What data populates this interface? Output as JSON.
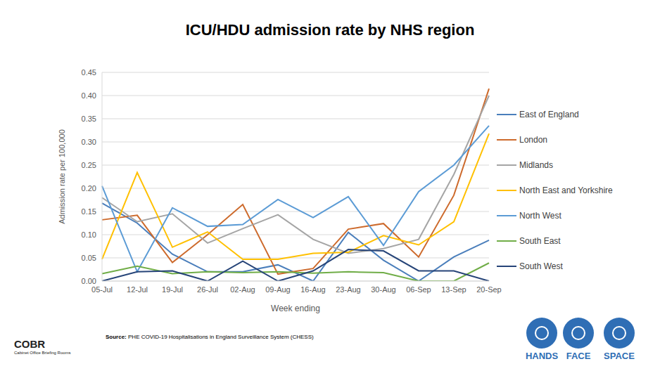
{
  "chart_data": {
    "type": "line",
    "title": "ICU/HDU admission rate by NHS region",
    "x_label": "Week ending",
    "y_label": "Admission rate per 100,000",
    "categories": [
      "05-Jul",
      "12-Jul",
      "19-Jul",
      "26-Jul",
      "02-Aug",
      "09-Aug",
      "16-Aug",
      "23-Aug",
      "30-Aug",
      "06-Sep",
      "13-Sep",
      "20-Sep"
    ],
    "series": [
      {
        "name": "East of England",
        "color": "#4a7ebb",
        "values": [
          0.168,
          0.125,
          0.058,
          0.02,
          0.02,
          0.035,
          0.0,
          0.105,
          0.045,
          0.0,
          0.052,
          0.088
        ]
      },
      {
        "name": "London",
        "color": "#cd6a2c",
        "values": [
          0.132,
          0.142,
          0.04,
          0.1,
          0.165,
          0.015,
          0.027,
          0.112,
          0.124,
          0.052,
          0.185,
          0.415
        ]
      },
      {
        "name": "Midlands",
        "color": "#a5a5a5",
        "values": [
          0.18,
          0.128,
          0.145,
          0.082,
          0.113,
          0.143,
          0.09,
          0.06,
          0.07,
          0.09,
          0.23,
          0.4
        ]
      },
      {
        "name": "North East and Yorkshire",
        "color": "#ffc000",
        "values": [
          0.047,
          0.234,
          0.073,
          0.106,
          0.047,
          0.047,
          0.06,
          0.062,
          0.098,
          0.078,
          0.128,
          0.318
        ]
      },
      {
        "name": "North West",
        "color": "#5b9bd5",
        "values": [
          0.205,
          0.02,
          0.158,
          0.118,
          0.122,
          0.176,
          0.137,
          0.182,
          0.077,
          0.193,
          0.25,
          0.335
        ]
      },
      {
        "name": "South East",
        "color": "#70ad47",
        "values": [
          0.016,
          0.032,
          0.016,
          0.02,
          0.018,
          0.02,
          0.017,
          0.02,
          0.018,
          0.0,
          0.0,
          0.039
        ]
      },
      {
        "name": "South West",
        "color": "#264478",
        "values": [
          0.0,
          0.02,
          0.022,
          0.0,
          0.043,
          0.0,
          0.022,
          0.068,
          0.065,
          0.022,
          0.022,
          0.0
        ]
      }
    ],
    "ylim": [
      0,
      0.45
    ],
    "yticks": [
      {
        "value": 0,
        "label": "0.00"
      },
      {
        "value": 0.05,
        "label": "0.05"
      },
      {
        "value": 0.1,
        "label": "0.10"
      },
      {
        "value": 0.15,
        "label": "0.15"
      },
      {
        "value": 0.2,
        "label": "0.20"
      },
      {
        "value": 0.25,
        "label": "0.25"
      },
      {
        "value": 0.3,
        "label": "0.30"
      },
      {
        "value": 0.35,
        "label": "0.35"
      },
      {
        "value": 0.4,
        "label": "0.40"
      },
      {
        "value": 0.45,
        "label": "0.45"
      }
    ],
    "grid": true,
    "legend": "right"
  },
  "footer": {
    "source_label": "Source:",
    "source": "PHE COVID-19 Hospitalisations in England Surveillance System (CHESS)",
    "logo": "COBR",
    "logo_subtitle": "Cabinet Office Briefing Rooms",
    "icons": [
      "HANDS",
      "FACE",
      "SPACE"
    ]
  }
}
